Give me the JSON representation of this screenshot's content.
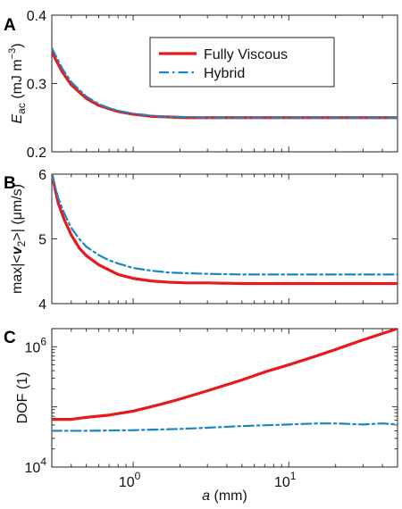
{
  "colors": {
    "fully_viscous": "#e8191c",
    "hybrid": "#1a87c0",
    "axis": "#222222"
  },
  "legend": {
    "fully_viscous": "Fully Viscous",
    "hybrid": "Hybrid"
  },
  "chart_data": [
    {
      "panel": "A",
      "type": "line",
      "xscale": "log",
      "xlim": [
        0.3,
        50
      ],
      "ylim": [
        0.2,
        0.4
      ],
      "yticks": [
        "0.2",
        "0.3",
        "0.4"
      ],
      "ylabel": {
        "italic": "E",
        "sub": "ac",
        "units": " (mJ m",
        "sup": "−3",
        "close": ")"
      },
      "legend_position": "top-center",
      "series": [
        {
          "name": "Fully Viscous",
          "x": [
            0.3,
            0.35,
            0.4,
            0.5,
            0.6,
            0.7,
            0.8,
            1.0,
            1.3,
            1.7,
            2.2,
            3,
            5,
            10,
            20,
            50
          ],
          "y": [
            0.346,
            0.317,
            0.298,
            0.278,
            0.268,
            0.263,
            0.259,
            0.255,
            0.252,
            0.251,
            0.25,
            0.25,
            0.25,
            0.25,
            0.25,
            0.25
          ]
        },
        {
          "name": "Hybrid",
          "x": [
            0.3,
            0.35,
            0.4,
            0.5,
            0.6,
            0.7,
            0.8,
            1.0,
            1.3,
            1.7,
            2.2,
            3,
            5,
            10,
            20,
            50
          ],
          "y": [
            0.352,
            0.322,
            0.302,
            0.281,
            0.27,
            0.264,
            0.26,
            0.256,
            0.253,
            0.251,
            0.251,
            0.25,
            0.25,
            0.25,
            0.25,
            0.25
          ]
        }
      ]
    },
    {
      "panel": "B",
      "type": "line",
      "xscale": "log",
      "xlim": [
        0.3,
        50
      ],
      "ylim": [
        4,
        6
      ],
      "yticks": [
        "4",
        "5",
        "6"
      ],
      "ylabel": {
        "pre": "max|<",
        "bold_italic": "v",
        "sub": "2",
        "post": ">| (μm/s)"
      },
      "series": [
        {
          "name": "Fully Viscous",
          "x": [
            0.3,
            0.33,
            0.36,
            0.4,
            0.45,
            0.5,
            0.6,
            0.7,
            0.8,
            1.0,
            1.3,
            1.7,
            2.2,
            3,
            5,
            10,
            20,
            50
          ],
          "y": [
            6.0,
            5.55,
            5.3,
            5.06,
            4.86,
            4.74,
            4.6,
            4.52,
            4.45,
            4.39,
            4.35,
            4.33,
            4.32,
            4.32,
            4.31,
            4.31,
            4.31,
            4.31
          ]
        },
        {
          "name": "Hybrid",
          "x": [
            0.3,
            0.33,
            0.36,
            0.4,
            0.45,
            0.5,
            0.6,
            0.7,
            0.8,
            1.0,
            1.3,
            1.7,
            2.2,
            3,
            5,
            10,
            20,
            50
          ],
          "y": [
            6.0,
            5.63,
            5.4,
            5.17,
            5.0,
            4.88,
            4.75,
            4.67,
            4.62,
            4.55,
            4.51,
            4.48,
            4.47,
            4.46,
            4.45,
            4.45,
            4.45,
            4.45
          ]
        }
      ]
    },
    {
      "panel": "C",
      "type": "line",
      "xscale": "log",
      "yscale": "log",
      "xlim": [
        0.3,
        50
      ],
      "ylim": [
        10000,
        2000000
      ],
      "ylabel": "DOF (1)",
      "xlabel": {
        "italic": "a",
        "rest": " (mm)"
      },
      "xticks": [
        {
          "value": 1,
          "base": "10",
          "exp": "0"
        },
        {
          "value": 10,
          "base": "10",
          "exp": "1"
        }
      ],
      "yticks": [
        {
          "value": 10000,
          "base": "10",
          "exp": "4"
        },
        {
          "value": 1000000,
          "base": "10",
          "exp": "6"
        }
      ],
      "series": [
        {
          "name": "Fully Viscous",
          "x": [
            0.3,
            0.4,
            0.5,
            0.7,
            1.0,
            1.5,
            2,
            3,
            5,
            7,
            10,
            15,
            20,
            30,
            50
          ],
          "y": [
            62000,
            62000,
            67000,
            73000,
            85000,
            110000,
            135000,
            185000,
            280000,
            380000,
            500000,
            700000,
            900000,
            1300000,
            2000000
          ]
        },
        {
          "name": "Hybrid",
          "x": [
            0.3,
            0.5,
            1.0,
            2,
            3,
            5,
            10,
            15,
            20,
            30,
            40,
            50
          ],
          "y": [
            40000,
            40000,
            41000,
            43000,
            45000,
            48000,
            51000,
            53000,
            53000,
            51000,
            53000,
            51000
          ]
        }
      ]
    }
  ]
}
